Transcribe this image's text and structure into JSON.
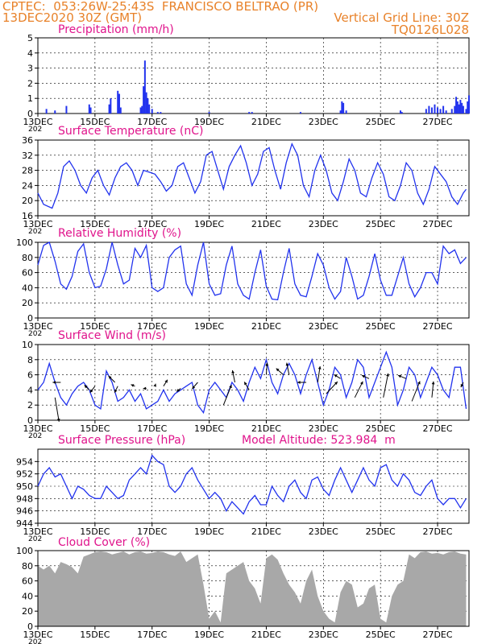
{
  "header": {
    "line1": "CPTEC:  053:26W-25:43S  FRANCISCO BELTRAO (PR)",
    "line2_left": "13DEC2020 30Z (GMT)",
    "line2_right": "Vertical Grid Line: 30Z",
    "line3_right": "TQ0126L028",
    "altitude": "Model Altitude: 523.984  m"
  },
  "colors": {
    "header": "#e8822a",
    "title": "#e0148c",
    "line": "#2233ee",
    "cloud": "#a8a8a8"
  },
  "chart_data": [
    {
      "type": "bar",
      "title": "Precipitation (mm/h)",
      "x_tick_labels": [
        "13DEC",
        "15DEC",
        "17DEC",
        "19DEC",
        "21DEC",
        "23DEC",
        "25DEC",
        "27DEC"
      ],
      "year_label": "202",
      "ylim": [
        0,
        5
      ],
      "y_ticks": [
        0,
        1,
        2,
        3,
        4,
        5
      ],
      "series": [
        {
          "x": [
            13.3,
            13.6,
            14.0,
            14.8,
            14.85,
            15.5,
            15.55,
            15.8,
            15.85,
            15.9,
            16.6,
            16.65,
            16.7,
            16.75,
            16.8,
            16.85,
            16.9,
            17.0,
            17.2,
            17.3,
            19.0,
            20.4,
            20.5,
            22.2,
            23.6,
            23.65,
            23.7,
            23.8,
            25.7,
            25.75,
            26.6,
            26.7,
            26.8,
            26.9,
            27.0,
            27.1,
            27.2,
            27.3,
            27.5,
            27.6,
            27.65,
            27.7,
            27.75,
            27.8,
            27.85,
            27.9,
            28.0,
            28.05,
            28.1
          ],
          "values": [
            0.3,
            0.2,
            0.5,
            0.6,
            0.4,
            0.6,
            1.0,
            1.5,
            1.3,
            0.4,
            0.4,
            0.5,
            1.8,
            3.5,
            1.4,
            1.0,
            0.6,
            0.3,
            0.1,
            0.1,
            0.1,
            0.1,
            0.1,
            0.1,
            0.2,
            0.8,
            0.7,
            0.2,
            0.2,
            0.1,
            0.3,
            0.5,
            0.4,
            0.6,
            0.4,
            0.3,
            0.5,
            0.2,
            0.3,
            0.5,
            1.1,
            0.8,
            0.6,
            0.9,
            0.7,
            0.5,
            0.3,
            0.8,
            1.2
          ]
        }
      ]
    },
    {
      "type": "line",
      "title": "Surface Temperature (nC)",
      "x_tick_labels": [
        "13DEC",
        "15DEC",
        "17DEC",
        "19DEC",
        "21DEC",
        "23DEC",
        "25DEC",
        "27DEC"
      ],
      "year_label": "202",
      "ylim": [
        16,
        36
      ],
      "y_ticks": [
        16,
        20,
        24,
        28,
        32,
        36
      ],
      "x": [
        13.0,
        13.2,
        13.5,
        13.7,
        13.9,
        14.1,
        14.3,
        14.5,
        14.7,
        14.9,
        15.1,
        15.3,
        15.5,
        15.7,
        15.9,
        16.1,
        16.3,
        16.5,
        16.7,
        16.9,
        17.1,
        17.3,
        17.5,
        17.7,
        17.9,
        18.1,
        18.3,
        18.5,
        18.7,
        18.9,
        19.1,
        19.3,
        19.5,
        19.7,
        19.9,
        20.1,
        20.3,
        20.5,
        20.7,
        20.9,
        21.1,
        21.3,
        21.5,
        21.7,
        21.9,
        22.1,
        22.3,
        22.5,
        22.7,
        22.9,
        23.1,
        23.3,
        23.5,
        23.7,
        23.9,
        24.1,
        24.3,
        24.5,
        24.7,
        24.9,
        25.1,
        25.3,
        25.5,
        25.7,
        25.9,
        26.1,
        26.3,
        26.5,
        26.7,
        26.9,
        27.1,
        27.3,
        27.5,
        27.7,
        27.9,
        28.0
      ],
      "y": [
        22,
        19,
        18,
        22,
        29,
        30.5,
        28,
        24,
        22,
        26,
        28,
        24,
        21.5,
        26,
        29,
        30,
        28,
        24,
        28,
        27.5,
        27,
        25,
        22.5,
        24,
        29,
        30,
        26,
        22,
        25,
        32,
        33,
        28,
        23,
        29,
        32,
        34.5,
        30,
        24,
        27,
        33,
        34,
        28,
        23,
        30,
        35,
        32,
        24,
        21,
        28,
        32,
        28,
        22,
        20,
        25,
        31,
        28,
        22,
        21,
        26,
        30,
        27,
        21,
        20,
        24,
        30,
        28,
        22,
        19,
        23,
        29,
        27,
        25,
        21,
        19,
        22,
        23
      ],
      "series_name": "temp"
    },
    {
      "type": "line",
      "title": "Relative Humidity (%)",
      "x_tick_labels": [
        "13DEC",
        "15DEC",
        "17DEC",
        "19DEC",
        "21DEC",
        "23DEC",
        "25DEC",
        "27DEC"
      ],
      "year_label": "202",
      "ylim": [
        0,
        100
      ],
      "y_ticks": [
        0,
        20,
        40,
        60,
        80,
        100
      ],
      "x": [
        13.0,
        13.2,
        13.4,
        13.6,
        13.8,
        14.0,
        14.2,
        14.4,
        14.6,
        14.8,
        15.0,
        15.2,
        15.4,
        15.6,
        15.8,
        16.0,
        16.2,
        16.4,
        16.6,
        16.8,
        17.0,
        17.2,
        17.4,
        17.6,
        17.8,
        18.0,
        18.2,
        18.4,
        18.6,
        18.8,
        19.0,
        19.2,
        19.4,
        19.6,
        19.8,
        20.0,
        20.2,
        20.4,
        20.6,
        20.8,
        21.0,
        21.2,
        21.4,
        21.6,
        21.8,
        22.0,
        22.2,
        22.4,
        22.6,
        22.8,
        23.0,
        23.2,
        23.4,
        23.6,
        23.8,
        24.0,
        24.2,
        24.4,
        24.6,
        24.8,
        25.0,
        25.2,
        25.4,
        25.6,
        25.8,
        26.0,
        26.2,
        26.4,
        26.6,
        26.8,
        27.0,
        27.2,
        27.4,
        27.6,
        27.8,
        28.0
      ],
      "y": [
        70,
        96,
        100,
        75,
        45,
        38,
        55,
        88,
        98,
        60,
        40,
        42,
        65,
        100,
        70,
        45,
        50,
        92,
        80,
        96,
        40,
        35,
        40,
        80,
        90,
        95,
        45,
        30,
        70,
        100,
        45,
        30,
        32,
        70,
        95,
        45,
        30,
        25,
        60,
        90,
        42,
        25,
        24,
        60,
        92,
        45,
        30,
        28,
        55,
        85,
        70,
        40,
        25,
        35,
        80,
        55,
        25,
        30,
        55,
        85,
        50,
        30,
        30,
        55,
        80,
        45,
        28,
        40,
        60,
        60,
        45,
        95,
        85,
        90,
        72,
        80
      ],
      "series_name": "rh"
    },
    {
      "type": "line",
      "title": "Surface Wind (m/s)",
      "x_tick_labels": [
        "13DEC",
        "15DEC",
        "17DEC",
        "19DEC",
        "21DEC",
        "23DEC",
        "25DEC",
        "27DEC"
      ],
      "year_label": "202",
      "ylim": [
        0,
        10
      ],
      "y_ticks": [
        0,
        2,
        4,
        6,
        8,
        10
      ],
      "x": [
        13.0,
        13.2,
        13.4,
        13.6,
        13.8,
        14.0,
        14.2,
        14.4,
        14.6,
        14.8,
        15.0,
        15.2,
        15.4,
        15.6,
        15.8,
        16.0,
        16.2,
        16.4,
        16.6,
        16.8,
        17.0,
        17.2,
        17.4,
        17.6,
        17.8,
        18.0,
        18.2,
        18.4,
        18.6,
        18.8,
        19.0,
        19.2,
        19.4,
        19.6,
        19.8,
        20.0,
        20.2,
        20.4,
        20.6,
        20.8,
        21.0,
        21.2,
        21.4,
        21.6,
        21.8,
        22.0,
        22.2,
        22.4,
        22.6,
        22.8,
        23.0,
        23.2,
        23.4,
        23.6,
        23.8,
        24.0,
        24.2,
        24.4,
        24.6,
        24.8,
        25.0,
        25.2,
        25.4,
        25.6,
        25.8,
        26.0,
        26.2,
        26.4,
        26.6,
        26.8,
        27.0,
        27.2,
        27.4,
        27.6,
        27.8,
        28.0
      ],
      "y": [
        4,
        5,
        7.5,
        5,
        3,
        2,
        3.5,
        4.5,
        5,
        4,
        2,
        1.5,
        6.5,
        5,
        2.5,
        3,
        4,
        2.5,
        3.5,
        1.5,
        2,
        2.5,
        4,
        2.5,
        3.5,
        4,
        4.5,
        5,
        2,
        1,
        4,
        5,
        4,
        3,
        5,
        4,
        2.5,
        5,
        7,
        5.5,
        8,
        5,
        3.5,
        6,
        7.5,
        6,
        3.5,
        6,
        8,
        5,
        2,
        4,
        7,
        6,
        3,
        5,
        8,
        7,
        3,
        5,
        7,
        9,
        7,
        2,
        4,
        7,
        6,
        3,
        5,
        7,
        6,
        4,
        3,
        7,
        7,
        1.5
      ],
      "arrows": [
        {
          "x": 13.6,
          "y": 3,
          "u": 0.5,
          "v": -3
        },
        {
          "x": 13.8,
          "y": 5,
          "u": -1.0,
          "v": 0
        },
        {
          "x": 14.8,
          "y": 4,
          "u": -0.6,
          "v": 0.6
        },
        {
          "x": 15.0,
          "y": 4.5,
          "u": -0.6,
          "v": -0.8
        },
        {
          "x": 15.7,
          "y": 5,
          "u": -0.8,
          "v": 0.8
        },
        {
          "x": 15.8,
          "y": 4.5,
          "u": -0.4,
          "v": -0.8
        },
        {
          "x": 16.4,
          "y": 4.5,
          "u": -0.5,
          "v": 0.2
        },
        {
          "x": 16.8,
          "y": 4.2,
          "u": -0.4,
          "v": 0
        },
        {
          "x": 17.1,
          "y": 4.5,
          "u": 0.1,
          "v": 0.3
        },
        {
          "x": 17.4,
          "y": 4.5,
          "u": 0.5,
          "v": 0.8
        },
        {
          "x": 18.0,
          "y": 4.2,
          "u": -0.5,
          "v": -0.4
        },
        {
          "x": 18.6,
          "y": 5,
          "u": -0.7,
          "v": -0.8
        },
        {
          "x": 19.5,
          "y": 2,
          "u": 1.0,
          "v": 2.5
        },
        {
          "x": 19.9,
          "y": 5,
          "u": -0.3,
          "v": 1.5
        },
        {
          "x": 20.4,
          "y": 4,
          "u": -0.6,
          "v": 1.0
        },
        {
          "x": 21.0,
          "y": 6,
          "u": 0.1,
          "v": 1.5
        },
        {
          "x": 21.6,
          "y": 6,
          "u": -0.9,
          "v": 0.8
        },
        {
          "x": 21.8,
          "y": 6,
          "u": -0.3,
          "v": 1.5
        },
        {
          "x": 22.4,
          "y": 5,
          "u": -1.1,
          "v": 0
        },
        {
          "x": 22.8,
          "y": 5,
          "u": 0.3,
          "v": 2.0
        },
        {
          "x": 23.1,
          "y": 3.5,
          "u": 1.4,
          "v": 1.5
        },
        {
          "x": 23.6,
          "y": 5.5,
          "u": -0.8,
          "v": 0.5
        },
        {
          "x": 24.1,
          "y": 3,
          "u": 1.0,
          "v": 2.0
        },
        {
          "x": 24.6,
          "y": 5.5,
          "u": -0.9,
          "v": 0.4
        },
        {
          "x": 25.1,
          "y": 3,
          "u": 0.6,
          "v": 3.0
        },
        {
          "x": 25.9,
          "y": 5.5,
          "u": -1.0,
          "v": 0.4
        },
        {
          "x": 26.1,
          "y": 2.5,
          "u": 1.0,
          "v": 2.5
        },
        {
          "x": 26.8,
          "y": 3,
          "u": 0.2,
          "v": 2.0
        },
        {
          "x": 27.9,
          "y": 5,
          "u": -0.3,
          "v": -0.6
        }
      ],
      "series_name": "wind"
    },
    {
      "type": "line",
      "title": "Surface Pressure (hPa)",
      "x_tick_labels": [
        "13DEC",
        "15DEC",
        "17DEC",
        "19DEC",
        "21DEC",
        "23DEC",
        "25DEC",
        "27DEC"
      ],
      "year_label": "202",
      "ylim": [
        944,
        956
      ],
      "y_ticks": [
        944,
        946,
        948,
        950,
        952,
        954
      ],
      "x": [
        13.0,
        13.2,
        13.4,
        13.6,
        13.8,
        14.0,
        14.2,
        14.4,
        14.6,
        14.8,
        15.0,
        15.2,
        15.4,
        15.6,
        15.8,
        16.0,
        16.2,
        16.4,
        16.6,
        16.8,
        17.0,
        17.2,
        17.4,
        17.6,
        17.8,
        18.0,
        18.2,
        18.4,
        18.6,
        18.8,
        19.0,
        19.2,
        19.4,
        19.6,
        19.8,
        20.0,
        20.2,
        20.4,
        20.6,
        20.8,
        21.0,
        21.2,
        21.4,
        21.6,
        21.8,
        22.0,
        22.2,
        22.4,
        22.6,
        22.8,
        23.0,
        23.2,
        23.4,
        23.6,
        23.8,
        24.0,
        24.2,
        24.4,
        24.6,
        24.8,
        25.0,
        25.2,
        25.4,
        25.6,
        25.8,
        26.0,
        26.2,
        26.4,
        26.6,
        26.8,
        27.0,
        27.2,
        27.4,
        27.6,
        27.8,
        28.0
      ],
      "y": [
        950,
        952,
        953,
        951.5,
        952,
        950,
        948,
        950,
        949.5,
        948.5,
        948,
        948,
        950,
        949,
        948,
        948.5,
        951,
        952,
        953,
        952,
        955,
        954,
        953.5,
        950,
        949,
        950,
        952,
        953,
        951,
        949.5,
        948,
        949,
        948,
        946,
        947.5,
        946.5,
        945.5,
        947.5,
        948.5,
        947,
        947,
        950,
        948.5,
        947.5,
        950,
        951,
        949,
        948,
        951,
        951.5,
        949.5,
        948.5,
        951,
        953,
        951,
        949,
        951,
        953,
        951,
        950,
        953,
        953.5,
        951,
        950,
        952,
        951,
        949,
        948.5,
        950,
        951,
        948,
        947,
        948,
        948,
        946.5,
        948
      ]
    },
    {
      "type": "area",
      "title": "Cloud Cover (%)",
      "x_tick_labels": [
        "13DEC",
        "15DEC",
        "17DEC",
        "19DEC",
        "21DEC",
        "23DEC",
        "25DEC",
        "27DEC"
      ],
      "year_label": "202",
      "ylim": [
        0,
        100
      ],
      "y_ticks": [
        0,
        20,
        40,
        60,
        80,
        100
      ],
      "x": [
        13.0,
        13.2,
        13.4,
        13.6,
        13.8,
        14.0,
        14.2,
        14.4,
        14.6,
        14.8,
        15.0,
        15.2,
        15.4,
        15.6,
        15.8,
        16.0,
        16.2,
        16.4,
        16.6,
        16.8,
        17.0,
        17.2,
        17.4,
        17.6,
        17.8,
        18.0,
        18.2,
        18.4,
        18.6,
        18.8,
        19.0,
        19.2,
        19.4,
        19.6,
        19.8,
        20.0,
        20.2,
        20.4,
        20.6,
        20.8,
        21.0,
        21.2,
        21.4,
        21.6,
        21.8,
        22.0,
        22.2,
        22.4,
        22.6,
        22.8,
        23.0,
        23.2,
        23.4,
        23.6,
        23.8,
        24.0,
        24.2,
        24.4,
        24.6,
        24.8,
        25.0,
        25.2,
        25.4,
        25.6,
        25.8,
        26.0,
        26.2,
        26.4,
        26.6,
        26.8,
        27.0,
        27.2,
        27.4,
        27.6,
        27.8,
        28.0
      ],
      "y": [
        80,
        75,
        80,
        70,
        85,
        82,
        78,
        70,
        92,
        95,
        98,
        99,
        98,
        95,
        97,
        99,
        95,
        98,
        99,
        96,
        97,
        99,
        98,
        95,
        93,
        99,
        85,
        90,
        95,
        55,
        10,
        20,
        5,
        70,
        75,
        80,
        85,
        60,
        50,
        30,
        90,
        95,
        88,
        70,
        55,
        45,
        30,
        60,
        75,
        40,
        20,
        10,
        5,
        45,
        60,
        55,
        25,
        30,
        50,
        55,
        10,
        5,
        40,
        55,
        60,
        95,
        90,
        98,
        99,
        96,
        97,
        95,
        98,
        99,
        96,
        95
      ]
    }
  ]
}
